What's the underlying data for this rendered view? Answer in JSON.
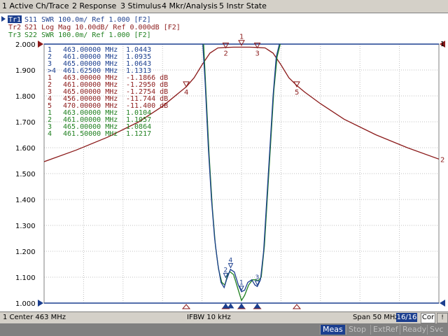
{
  "menu": {
    "items": [
      "1 Active Ch/Trace",
      "2 Response",
      "3 Stimulus",
      "4 Mkr/Analysis",
      "5 Instr State"
    ]
  },
  "traces": [
    {
      "label": "Tr1",
      "desc": "S11  SWR 100.0m/ Ref 1.000 [F2]",
      "color": "#1c3f8f",
      "active": true
    },
    {
      "label": "Tr2",
      "desc": "S21  Log Mag 10.00dB/ Ref 0.000dB [F2]",
      "color": "#8b1a1a",
      "active": false
    },
    {
      "label": "Tr3",
      "desc": "S22  SWR 100.0m/ Ref 1.000 [F2]",
      "color": "#208020",
      "active": false
    }
  ],
  "marker_table": [
    {
      "num": "1",
      "freq": "463.00000 MHz",
      "val": "1.0443",
      "color": "#1c3f8f"
    },
    {
      "num": "2",
      "freq": "461.00000 MHz",
      "val": "1.0935",
      "color": "#1c3f8f"
    },
    {
      "num": "3",
      "freq": "465.00000 MHz",
      "val": "1.0643",
      "color": "#1c3f8f"
    },
    {
      "num": ">4",
      "freq": "461.62500 MHz",
      "val": "1.1313",
      "color": "#1c3f8f"
    },
    {
      "num": "1",
      "freq": "463.00000 MHz",
      "val": "-1.1866 dB",
      "color": "#8b1a1a"
    },
    {
      "num": "2",
      "freq": "461.00000 MHz",
      "val": "-1.2950 dB",
      "color": "#8b1a1a"
    },
    {
      "num": "3",
      "freq": "465.00000 MHz",
      "val": "-1.2754 dB",
      "color": "#8b1a1a"
    },
    {
      "num": "4",
      "freq": "456.00000 MHz",
      "val": "-11.744 dB",
      "color": "#8b1a1a"
    },
    {
      "num": "5",
      "freq": "470.00000 MHz",
      "val": "-11.400 dB",
      "color": "#8b1a1a"
    },
    {
      "num": "1",
      "freq": "463.00000 MHz",
      "val": "1.0104",
      "color": "#208020"
    },
    {
      "num": "2",
      "freq": "461.00000 MHz",
      "val": "1.1057",
      "color": "#208020"
    },
    {
      "num": "3",
      "freq": "465.00000 MHz",
      "val": "1.0864",
      "color": "#208020"
    },
    {
      "num": "4",
      "freq": "461.50000 MHz",
      "val": "1.1217",
      "color": "#208020"
    }
  ],
  "chart_data": {
    "type": "line",
    "x_unit": "MHz",
    "xlim": [
      438,
      488
    ],
    "ylim": [
      1.0,
      2.0
    ],
    "y_ticks": [
      "2.000",
      "1.900",
      "1.800",
      "1.700",
      "1.600",
      "1.500",
      "1.400",
      "1.300",
      "1.200",
      "1.100",
      "1.000"
    ],
    "grid": true,
    "series": [
      {
        "name": "S21",
        "color": "#8b1a1a",
        "x": [
          438,
          442,
          446,
          450,
          453,
          455,
          456,
          457,
          458,
          459,
          460,
          461,
          462,
          463,
          464,
          465,
          466,
          467,
          468,
          469,
          470,
          471,
          473,
          476,
          480,
          484,
          488
        ],
        "y": [
          1.546,
          1.59,
          1.64,
          1.7,
          1.76,
          1.81,
          1.835,
          1.87,
          1.92,
          1.965,
          1.985,
          1.987,
          1.988,
          1.988,
          1.988,
          1.987,
          1.985,
          1.965,
          1.92,
          1.87,
          1.84,
          1.815,
          1.77,
          1.71,
          1.65,
          1.6,
          1.556
        ]
      },
      {
        "name": "S11",
        "color": "#1c3f8f",
        "x": [
          458.1,
          458.4,
          458.8,
          459.2,
          459.6,
          460.0,
          460.4,
          460.8,
          461.1,
          461.6,
          462.1,
          462.6,
          463.0,
          463.4,
          463.8,
          464.3,
          464.7,
          465.0,
          465.4,
          465.8,
          466.2,
          466.6,
          467.0,
          467.4,
          467.8
        ],
        "y": [
          2.0,
          1.85,
          1.6,
          1.4,
          1.25,
          1.15,
          1.08,
          1.06,
          1.09,
          1.13,
          1.12,
          1.07,
          1.044,
          1.05,
          1.08,
          1.09,
          1.07,
          1.064,
          1.09,
          1.2,
          1.4,
          1.6,
          1.8,
          1.95,
          2.0
        ]
      },
      {
        "name": "S22",
        "color": "#208020",
        "x": [
          458.2,
          458.5,
          458.9,
          459.3,
          459.7,
          460.1,
          460.5,
          460.9,
          461.2,
          461.5,
          462.0,
          462.6,
          463.0,
          463.4,
          463.9,
          464.4,
          464.8,
          465.1,
          465.5,
          465.9,
          466.3,
          466.7,
          467.1,
          467.5,
          467.9
        ],
        "y": [
          2.0,
          1.82,
          1.57,
          1.37,
          1.22,
          1.13,
          1.08,
          1.07,
          1.105,
          1.122,
          1.11,
          1.05,
          1.01,
          1.03,
          1.07,
          1.09,
          1.09,
          1.086,
          1.1,
          1.22,
          1.42,
          1.62,
          1.82,
          1.95,
          2.0
        ]
      }
    ],
    "markers_s21": [
      {
        "label": "1",
        "x": 463,
        "y": 1.99,
        "active": true
      },
      {
        "label": "2",
        "x": 461,
        "y": 1.98
      },
      {
        "label": "3",
        "x": 465,
        "y": 1.98
      },
      {
        "label": "4",
        "x": 456,
        "y": 1.83
      },
      {
        "label": "5",
        "x": 470,
        "y": 1.83
      }
    ],
    "markers_s11": [
      {
        "label": "1",
        "x": 463,
        "y": 1.044
      },
      {
        "label": "2",
        "x": 461,
        "y": 1.0935
      },
      {
        "label": "3",
        "x": 465,
        "y": 1.0643
      },
      {
        "label": "4",
        "x": 461.625,
        "y": 1.1313
      }
    ],
    "right_edge_labels": [
      "1",
      "2"
    ]
  },
  "status": {
    "channel": "1  Center 463 MHz",
    "ifbw": "IFBW 10 kHz",
    "span": "Span 50 MHz",
    "chcount": "16/16",
    "cor": "Cor",
    "scroll": "!"
  },
  "states": [
    {
      "label": "Meas",
      "active": true
    },
    {
      "label": "Stop",
      "active": false
    },
    {
      "label": "ExtRef",
      "active": false
    },
    {
      "label": "Ready",
      "active": false
    },
    {
      "label": "Svc",
      "active": false
    }
  ]
}
